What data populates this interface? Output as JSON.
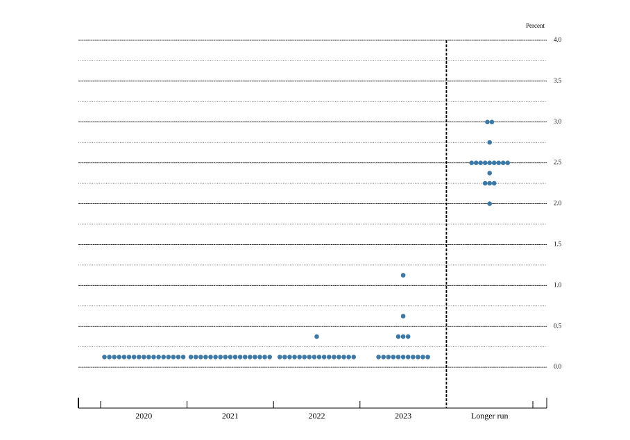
{
  "chart_data": {
    "type": "dot",
    "y_label": "Percent",
    "categories": [
      "2020",
      "2021",
      "2022",
      "2023",
      "Longer run"
    ],
    "dots": [
      [
        {
          "value": 0.125,
          "count": 17
        }
      ],
      [
        {
          "value": 0.125,
          "count": 17
        }
      ],
      [
        {
          "value": 0.125,
          "count": 16
        },
        {
          "value": 0.375,
          "count": 1
        }
      ],
      [
        {
          "value": 0.125,
          "count": 11
        },
        {
          "value": 0.375,
          "count": 3
        },
        {
          "value": 0.625,
          "count": 1
        },
        {
          "value": 1.125,
          "count": 1
        }
      ],
      [
        {
          "value": 2.0,
          "count": 1
        },
        {
          "value": 2.25,
          "count": 3
        },
        {
          "value": 2.375,
          "count": 1
        },
        {
          "value": 2.5,
          "count": 9
        },
        {
          "value": 2.75,
          "count": 1
        },
        {
          "value": 3.0,
          "count": 2
        }
      ]
    ],
    "color": "#3d79a7",
    "ylim": [
      -0.5,
      4.0
    ],
    "yticks": [
      {
        "value": 0,
        "label": "0.0"
      },
      {
        "value": 0.5,
        "label": "0.5"
      },
      {
        "value": 1,
        "label": "1.0"
      },
      {
        "value": 1.5,
        "label": "1.5"
      },
      {
        "value": 2,
        "label": "2.0"
      },
      {
        "value": 2.5,
        "label": "2.5"
      },
      {
        "value": 3,
        "label": "3.0"
      },
      {
        "value": 3.5,
        "label": "3.5"
      },
      {
        "value": 4,
        "label": "4.0"
      }
    ],
    "minor_yticks": [
      0.25,
      0.75,
      1.25,
      1.75,
      2.25,
      2.75,
      3.25,
      3.75
    ],
    "grid": true
  }
}
